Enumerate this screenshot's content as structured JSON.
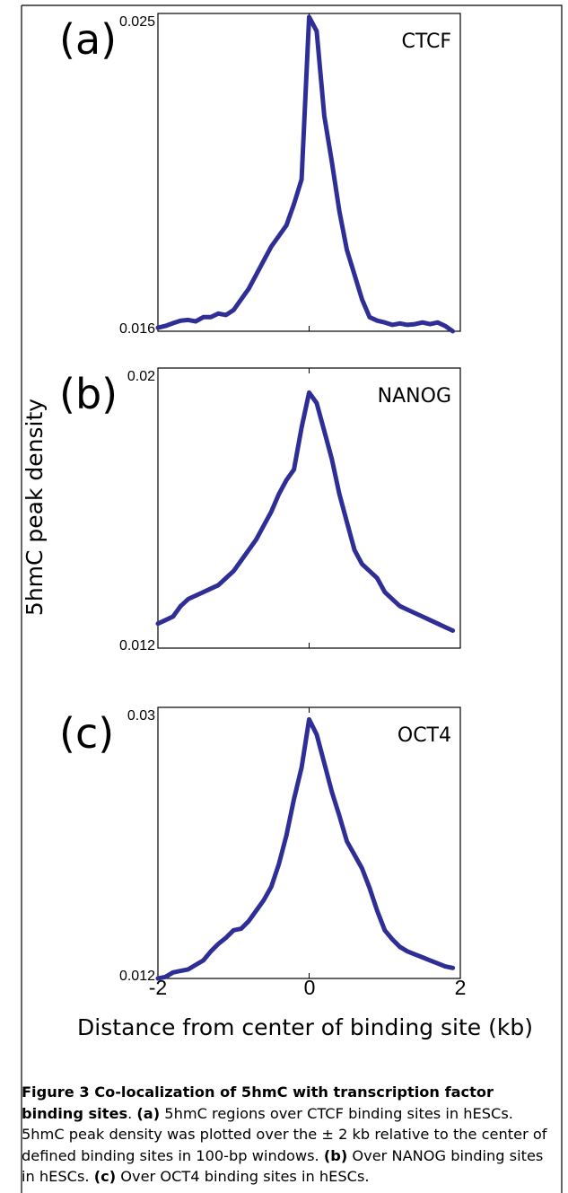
{
  "figure": {
    "ylabel": "5hmC peak density",
    "xlabel": "Distance from center of binding site (kb)",
    "xticks": [
      "-2",
      "0",
      "2"
    ]
  },
  "caption": {
    "title": "Figure 3 Co-localization of 5hmC with transcription factor binding sites",
    "after_title": ". ",
    "a_label": "(a)",
    "a_text": " 5hmC regions over CTCF binding sites in hESCs. 5hmC peak density was plotted over the ± 2 kb relative to the center of defined binding sites in 100-bp windows. ",
    "b_label": "(b)",
    "b_text": " Over NANOG binding sites in hESCs. ",
    "c_label": "(c)",
    "c_text": " Over OCT4 binding sites in hESCs."
  },
  "style": {
    "line_color": "#2e2e96",
    "frame_color": "#000000"
  },
  "chart_data": [
    {
      "type": "line",
      "panel_label": "(a)",
      "series": [
        {
          "name": "CTCF",
          "x": [
            -2.0,
            -1.9,
            -1.8,
            -1.7,
            -1.6,
            -1.5,
            -1.4,
            -1.3,
            -1.2,
            -1.1,
            -1.0,
            -0.9,
            -0.8,
            -0.7,
            -0.6,
            -0.5,
            -0.4,
            -0.3,
            -0.2,
            -0.1,
            0.0,
            0.1,
            0.2,
            0.3,
            0.4,
            0.5,
            0.6,
            0.7,
            0.8,
            0.9,
            1.0,
            1.1,
            1.2,
            1.3,
            1.4,
            1.5,
            1.6,
            1.7,
            1.8,
            1.9
          ],
          "y": [
            0.0161,
            0.01615,
            0.01623,
            0.0163,
            0.01632,
            0.01628,
            0.0164,
            0.0164,
            0.0165,
            0.01646,
            0.0166,
            0.0169,
            0.0172,
            0.0176,
            0.018,
            0.0184,
            0.0187,
            0.019,
            0.0196,
            0.0203,
            0.0249,
            0.0245,
            0.0221,
            0.0208,
            0.0194,
            0.0183,
            0.0176,
            0.0169,
            0.0164,
            0.0163,
            0.01625,
            0.01618,
            0.01622,
            0.01618,
            0.0162,
            0.01625,
            0.0162,
            0.01625,
            0.01615,
            0.016
          ]
        }
      ],
      "ylim": [
        0.016,
        0.025
      ],
      "yticks": [
        "0.016",
        "0.025"
      ],
      "xlim": [
        -2,
        2
      ]
    },
    {
      "type": "line",
      "panel_label": "(b)",
      "series": [
        {
          "name": "NANOG",
          "x": [
            -2.0,
            -1.9,
            -1.8,
            -1.7,
            -1.6,
            -1.5,
            -1.4,
            -1.3,
            -1.2,
            -1.1,
            -1.0,
            -0.9,
            -0.8,
            -0.7,
            -0.6,
            -0.5,
            -0.4,
            -0.3,
            -0.2,
            -0.1,
            0.0,
            0.1,
            0.2,
            0.3,
            0.4,
            0.5,
            0.6,
            0.7,
            0.8,
            0.9,
            1.0,
            1.1,
            1.2,
            1.3,
            1.4,
            1.5,
            1.6,
            1.7,
            1.8,
            1.9
          ],
          "y": [
            0.0127,
            0.0128,
            0.0129,
            0.0132,
            0.0134,
            0.0135,
            0.0136,
            0.0137,
            0.0138,
            0.014,
            0.0142,
            0.0145,
            0.0148,
            0.0151,
            0.0155,
            0.0159,
            0.0164,
            0.0168,
            0.0171,
            0.0183,
            0.0193,
            0.019,
            0.0182,
            0.0174,
            0.0164,
            0.0156,
            0.0148,
            0.0144,
            0.0142,
            0.014,
            0.0136,
            0.0134,
            0.0132,
            0.0131,
            0.013,
            0.0129,
            0.0128,
            0.0127,
            0.0126,
            0.0125
          ]
        }
      ],
      "ylim": [
        0.012,
        0.02
      ],
      "yticks": [
        "0.012",
        "0.02"
      ],
      "xlim": [
        -2,
        2
      ]
    },
    {
      "type": "line",
      "panel_label": "(c)",
      "series": [
        {
          "name": "OCT4",
          "x": [
            -2.0,
            -1.9,
            -1.8,
            -1.7,
            -1.6,
            -1.5,
            -1.4,
            -1.3,
            -1.2,
            -1.1,
            -1.0,
            -0.9,
            -0.8,
            -0.7,
            -0.6,
            -0.5,
            -0.4,
            -0.3,
            -0.2,
            -0.1,
            0.0,
            0.1,
            0.2,
            0.3,
            0.4,
            0.5,
            0.6,
            0.7,
            0.8,
            0.9,
            1.0,
            1.1,
            1.2,
            1.3,
            1.4,
            1.5,
            1.6,
            1.7,
            1.8,
            1.9
          ],
          "y": [
            0.012,
            0.0121,
            0.0124,
            0.0125,
            0.0126,
            0.0129,
            0.0132,
            0.0138,
            0.0143,
            0.0147,
            0.0152,
            0.0153,
            0.0158,
            0.0165,
            0.0172,
            0.0181,
            0.0196,
            0.0215,
            0.0239,
            0.026,
            0.0292,
            0.0282,
            0.0263,
            0.0244,
            0.0228,
            0.0211,
            0.0202,
            0.0193,
            0.018,
            0.0165,
            0.0152,
            0.0146,
            0.0141,
            0.0138,
            0.0136,
            0.0134,
            0.0132,
            0.013,
            0.0128,
            0.0127
          ]
        }
      ],
      "ylim": [
        0.012,
        0.03
      ],
      "yticks": [
        "0.012",
        "0.03"
      ],
      "xlim": [
        -2,
        2
      ]
    }
  ]
}
